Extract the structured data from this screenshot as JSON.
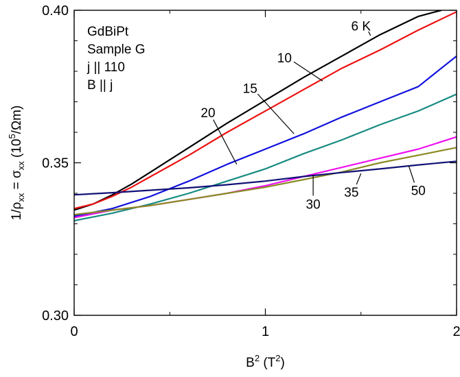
{
  "chart_data": {
    "type": "line",
    "xlabel": "B",
    "xlabel_sup": "2",
    "xlabel_unit_open": " (T",
    "xlabel_unit_sup": "2",
    "xlabel_unit_close": ")",
    "ylabel_parts": {
      "prefix": "1/ρ",
      "sub1": "xx",
      "mid": " = σ",
      "sub2": "xx",
      "unit_open": " (10",
      "unit_sup": "5",
      "unit_close": "/Ωm)"
    },
    "xlim": [
      0,
      2
    ],
    "ylim": [
      0.3,
      0.4
    ],
    "xticks": [
      0,
      1,
      2
    ],
    "xtick_labels": [
      "0",
      "1",
      "2"
    ],
    "yticks": [
      0.3,
      0.35,
      0.4
    ],
    "ytick_labels": [
      "0.30",
      "0.35",
      "0.40"
    ],
    "grid": false,
    "annotation_lines": [
      "GdBiPt",
      "Sample G",
      "j || 110",
      "B || j"
    ],
    "series": [
      {
        "name": "6 K",
        "color": "#000000",
        "x": [
          0,
          0.1,
          0.2,
          0.3,
          0.4,
          0.5,
          0.6,
          0.8,
          1.0,
          1.2,
          1.4,
          1.6,
          1.8,
          1.92
        ],
        "y": [
          0.3345,
          0.3365,
          0.3395,
          0.343,
          0.347,
          0.351,
          0.355,
          0.363,
          0.3705,
          0.378,
          0.385,
          0.392,
          0.398,
          0.4
        ]
      },
      {
        "name": "10",
        "color": "#ee1111",
        "x": [
          0,
          0.1,
          0.2,
          0.3,
          0.4,
          0.5,
          0.6,
          0.8,
          1.0,
          1.2,
          1.4,
          1.6,
          1.8,
          2.0
        ],
        "y": [
          0.335,
          0.3365,
          0.339,
          0.342,
          0.3455,
          0.349,
          0.3525,
          0.36,
          0.367,
          0.374,
          0.381,
          0.387,
          0.3935,
          0.3995
        ]
      },
      {
        "name": "15",
        "color": "#1111dd",
        "x": [
          0,
          0.2,
          0.4,
          0.6,
          0.8,
          1.0,
          1.2,
          1.4,
          1.6,
          1.8,
          2.0
        ],
        "y": [
          0.3325,
          0.335,
          0.339,
          0.344,
          0.3495,
          0.3545,
          0.3595,
          0.365,
          0.37,
          0.375,
          0.385
        ]
      },
      {
        "name": "20",
        "color": "#158a80",
        "x": [
          0,
          0.2,
          0.4,
          0.6,
          0.8,
          1.0,
          1.2,
          1.4,
          1.6,
          1.8,
          2.0
        ],
        "y": [
          0.331,
          0.3335,
          0.3365,
          0.34,
          0.344,
          0.348,
          0.353,
          0.3575,
          0.3625,
          0.367,
          0.3725
        ]
      },
      {
        "name": "30",
        "color": "#ee11ee",
        "x": [
          0,
          0.2,
          0.4,
          0.6,
          0.8,
          1.0,
          1.2,
          1.4,
          1.6,
          1.8,
          2.0
        ],
        "y": [
          0.332,
          0.3345,
          0.336,
          0.338,
          0.34,
          0.3425,
          0.3455,
          0.3485,
          0.3515,
          0.3545,
          0.3585
        ]
      },
      {
        "name": "35",
        "color": "#8a8a22",
        "x": [
          0,
          0.2,
          0.4,
          0.6,
          0.8,
          1.0,
          1.2,
          1.4,
          1.6,
          1.8,
          2.0
        ],
        "y": [
          0.333,
          0.3345,
          0.336,
          0.338,
          0.34,
          0.342,
          0.3445,
          0.347,
          0.35,
          0.3525,
          0.355
        ]
      },
      {
        "name": "50",
        "color": "#111177",
        "x": [
          0,
          0.2,
          0.4,
          0.6,
          0.8,
          1.0,
          1.2,
          1.4,
          1.6,
          1.8,
          2.0
        ],
        "y": [
          0.3395,
          0.3402,
          0.341,
          0.3418,
          0.3428,
          0.344,
          0.3455,
          0.3468,
          0.348,
          0.3493,
          0.3505
        ]
      }
    ],
    "curve_labels": [
      {
        "text": "6 K",
        "x": 1.55,
        "y": 0.3917,
        "tx": 1.5,
        "ty": 0.395
      },
      {
        "text": "10",
        "x": 1.3,
        "y": 0.3768,
        "tx": 1.1,
        "ty": 0.3845
      },
      {
        "text": "15",
        "x": 1.15,
        "y": 0.3595,
        "tx": 0.92,
        "ty": 0.3745
      },
      {
        "text": "20",
        "x": 0.85,
        "y": 0.3495,
        "tx": 0.7,
        "ty": 0.3665
      },
      {
        "text": "30",
        "x": 1.25,
        "y": 0.346,
        "tx": 1.25,
        "ty": 0.3365
      },
      {
        "text": "35",
        "x": 1.5,
        "y": 0.3465,
        "tx": 1.45,
        "ty": 0.3405
      },
      {
        "text": "50",
        "x": 1.75,
        "y": 0.349,
        "tx": 1.8,
        "ty": 0.341
      }
    ]
  }
}
